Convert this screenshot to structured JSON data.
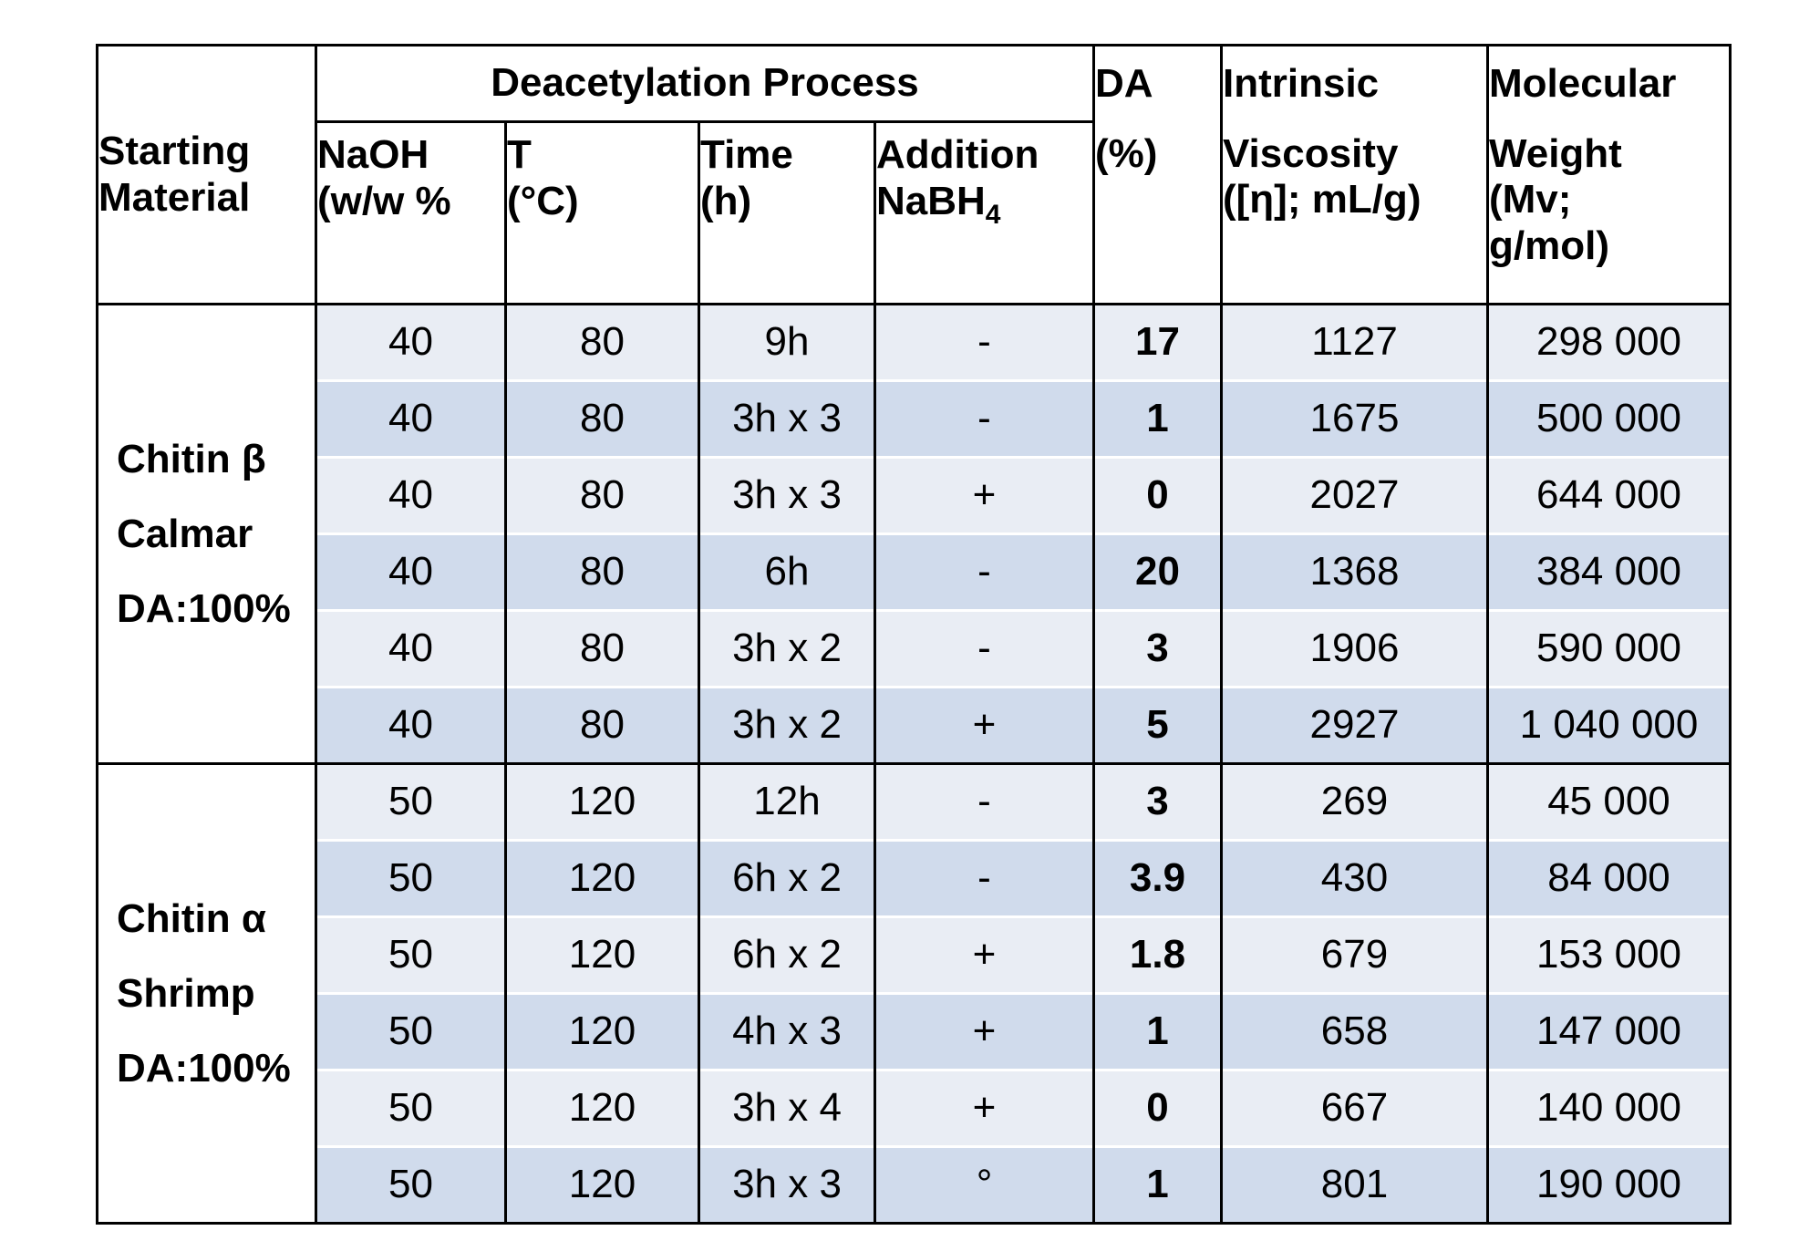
{
  "header": {
    "starting_material": "Starting\nMaterial",
    "process_group": "Deacetylation Process",
    "naoh": "NaOH\n(w/w %",
    "t": "T\n(°C)",
    "time": "Time\n(h)",
    "addition": "Addition\nNaBH",
    "addition_sub": "4",
    "da_top": "DA",
    "da_bottom": "(%)",
    "iv_top": "Intrinsic",
    "iv_bottom": "Viscosity\n([η]; mL/g)",
    "mw_top": "Molecular",
    "mw_bottom": "Weight\n(Mv;\ng/mol)"
  },
  "groups": [
    {
      "label_lines": [
        "Chitin β",
        "Calmar",
        "DA:100%"
      ],
      "rows": [
        {
          "naoh": "40",
          "t": "80",
          "time": "9h",
          "addition": "-",
          "da": "17",
          "iv": "1127",
          "mw": "298 000"
        },
        {
          "naoh": "40",
          "t": "80",
          "time": "3h x 3",
          "addition": "-",
          "da": "1",
          "iv": "1675",
          "mw": "500 000"
        },
        {
          "naoh": "40",
          "t": "80",
          "time": "3h x 3",
          "addition": "+",
          "da": "0",
          "iv": "2027",
          "mw": "644 000"
        },
        {
          "naoh": "40",
          "t": "80",
          "time": "6h",
          "addition": "-",
          "da": "20",
          "iv": "1368",
          "mw": "384 000"
        },
        {
          "naoh": "40",
          "t": "80",
          "time": "3h x 2",
          "addition": "-",
          "da": "3",
          "iv": "1906",
          "mw": "590 000"
        },
        {
          "naoh": "40",
          "t": "80",
          "time": "3h x 2",
          "addition": "+",
          "da": "5",
          "iv": "2927",
          "mw": "1 040 000"
        }
      ]
    },
    {
      "label_lines": [
        "Chitin α",
        "Shrimp",
        "DA:100%"
      ],
      "rows": [
        {
          "naoh": "50",
          "t": "120",
          "time": "12h",
          "addition": "-",
          "da": "3",
          "iv": "269",
          "mw": "45 000"
        },
        {
          "naoh": "50",
          "t": "120",
          "time": "6h x 2",
          "addition": "-",
          "da": "3.9",
          "iv": "430",
          "mw": "84 000"
        },
        {
          "naoh": "50",
          "t": "120",
          "time": "6h x 2",
          "addition": "+",
          "da": "1.8",
          "iv": "679",
          "mw": "153 000"
        },
        {
          "naoh": "50",
          "t": "120",
          "time": "4h x 3",
          "addition": "+",
          "da": "1",
          "iv": "658",
          "mw": "147 000"
        },
        {
          "naoh": "50",
          "t": "120",
          "time": "3h x 4",
          "addition": "+",
          "da": "0",
          "iv": "667",
          "mw": "140 000"
        },
        {
          "naoh": "50",
          "t": "120",
          "time": "3h x 3",
          "addition": "°",
          "da": "1",
          "iv": "801",
          "mw": "190 000"
        }
      ]
    }
  ],
  "colors": {
    "row_light": "#e9edf4",
    "row_dark": "#d0dbec",
    "border": "#000000"
  }
}
